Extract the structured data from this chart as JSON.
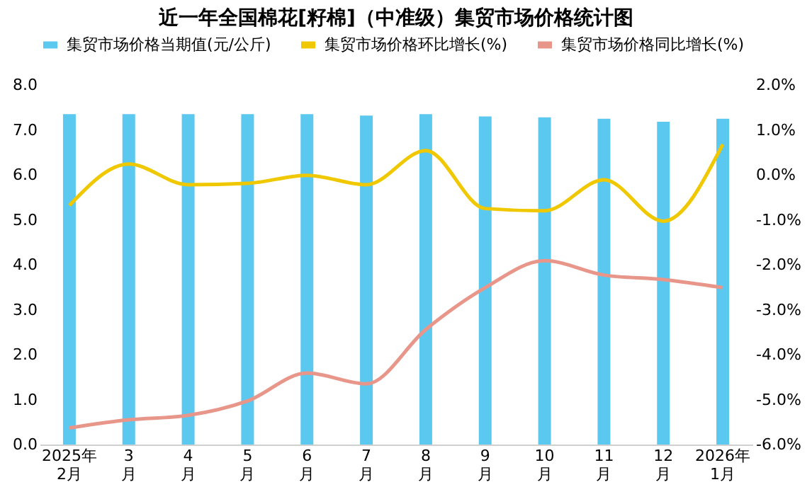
{
  "chart_data": {
    "type": "bar",
    "title": "近一年全国棉花[籽棉]（中准级）集贸市场价格统计图",
    "categories": [
      "2025年\n2月",
      "3\n月",
      "4\n月",
      "5\n月",
      "6\n月",
      "7\n月",
      "8\n月",
      "9\n月",
      "10\n月",
      "11\n月",
      "12\n月",
      "2026年\n1月"
    ],
    "series": [
      {
        "name": "集贸市场价格当期值(元/公斤)",
        "color": "#5bc8f0",
        "values": [
          7.35,
          7.35,
          7.35,
          7.35,
          7.35,
          7.32,
          7.35,
          7.3,
          7.28,
          7.25,
          7.18,
          7.25
        ]
      },
      {
        "name": "集贸市场价格环比增长(%)",
        "type": "line",
        "axis": "y2",
        "color": "#f0c800",
        "values": [
          -0.68,
          0.24,
          -0.22,
          -0.19,
          -0.01,
          -0.22,
          0.54,
          -0.75,
          -0.8,
          -0.11,
          -1.03,
          0.68
        ]
      },
      {
        "name": "集贸市场价格同比增长(%)",
        "type": "line",
        "axis": "y2",
        "color": "#e8958a",
        "values": [
          -5.63,
          -5.45,
          -5.35,
          -5.03,
          -4.41,
          -4.65,
          -3.44,
          -2.51,
          -1.91,
          -2.23,
          -2.33,
          -2.51
        ]
      }
    ],
    "ylim": [
      0,
      8
    ],
    "yticks": [
      {
        "value": 0,
        "label": "0.0"
      },
      {
        "value": 1,
        "label": "1.0"
      },
      {
        "value": 2,
        "label": "2.0"
      },
      {
        "value": 3,
        "label": "3.0"
      },
      {
        "value": 4,
        "label": "4.0"
      },
      {
        "value": 5,
        "label": "5.0"
      },
      {
        "value": 6,
        "label": "6.0"
      },
      {
        "value": 7,
        "label": "7.0"
      },
      {
        "value": 8,
        "label": "8.0"
      }
    ],
    "y2lim": [
      -6,
      2
    ],
    "y2ticks": [
      {
        "value": -6,
        "label": "-6.0%"
      },
      {
        "value": -5,
        "label": "-5.0%"
      },
      {
        "value": -4,
        "label": "-4.0%"
      },
      {
        "value": -3,
        "label": "-3.0%"
      },
      {
        "value": -2,
        "label": "-2.0%"
      },
      {
        "value": -1,
        "label": "-1.0%"
      },
      {
        "value": 0,
        "label": "0.0%"
      },
      {
        "value": 1,
        "label": "1.0%"
      },
      {
        "value": 2,
        "label": "2.0%"
      }
    ],
    "legend": "top",
    "grid": false
  }
}
